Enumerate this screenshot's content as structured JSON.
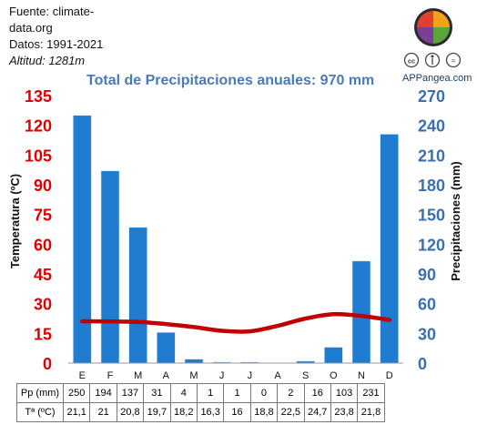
{
  "source": {
    "line1": "Fuente: climate-data.org",
    "line2": "Datos: 1991-2021",
    "altitude_label": "Altitud:",
    "altitude_value": "1281m"
  },
  "brand": {
    "name": "APPangea.com"
  },
  "table": {
    "row1_label": "Pp (mm)",
    "row2_label": "Tª (ºC)"
  },
  "chart_data": {
    "type": "bar+line",
    "title": "Total de Precipitaciones anuales: 970 mm",
    "categories": [
      "E",
      "F",
      "M",
      "A",
      "M",
      "J",
      "J",
      "A",
      "S",
      "O",
      "N",
      "D"
    ],
    "series": [
      {
        "name": "Pp (mm)",
        "type": "bar",
        "axis": "right",
        "color": "#1f7cd1",
        "values": [
          250,
          194,
          137,
          31,
          4,
          1,
          1,
          0,
          2,
          16,
          103,
          231
        ]
      },
      {
        "name": "Tª (ºC)",
        "type": "line",
        "axis": "left",
        "color": "#c00000",
        "values": [
          "21,1",
          "21",
          "20,8",
          "19,7",
          "18,2",
          "16,3",
          "16",
          "18,8",
          "22,5",
          "24,7",
          "23,8",
          "21,8"
        ]
      }
    ],
    "y_left": {
      "label": "Temperatura (ºC)",
      "min": 0,
      "max": 135,
      "ticks": [
        "0",
        "15",
        "30",
        "45",
        "60",
        "75",
        "90",
        "105",
        "120",
        "135"
      ],
      "color": "#e00000"
    },
    "y_right": {
      "label": "Precipitaciones (mm)",
      "min": 0,
      "max": 270,
      "ticks": [
        "0",
        "30",
        "60",
        "90",
        "120",
        "150",
        "180",
        "210",
        "240",
        "270"
      ],
      "color": "#3a6fb0"
    }
  }
}
